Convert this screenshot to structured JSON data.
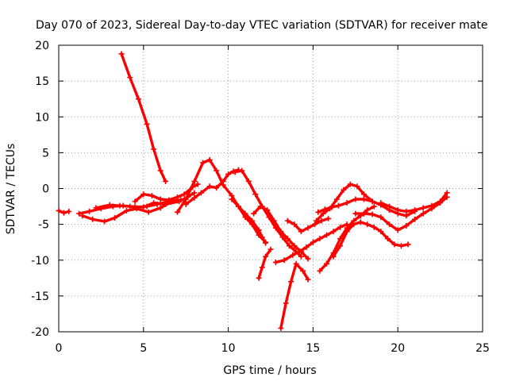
{
  "chart_data": {
    "type": "scatter",
    "title": "Day 070 of 2023, Sidereal Day-to-day VTEC variation (SDTVAR) for receiver mate",
    "xlabel": "GPS time / hours",
    "ylabel": "SDTVAR / TECUs",
    "xlim": [
      0,
      25
    ],
    "ylim": [
      -20,
      20
    ],
    "xticks": [
      0,
      5,
      10,
      15,
      20,
      25
    ],
    "yticks": [
      -20,
      -15,
      -10,
      -5,
      0,
      5,
      10,
      15,
      20
    ],
    "grid": true,
    "marker": "+",
    "color": "#ff0000",
    "series": [
      {
        "name": "s1",
        "x": [
          0.0,
          0.3,
          0.6
        ],
        "y": [
          -3.1,
          -3.4,
          -3.2
        ]
      },
      {
        "name": "s2",
        "x": [
          1.2,
          1.8,
          2.5,
          3.2,
          3.8,
          4.5,
          5.2,
          5.8,
          6.5,
          7.2
        ],
        "y": [
          -3.5,
          -3.2,
          -2.8,
          -2.5,
          -2.4,
          -2.6,
          -2.5,
          -2.2,
          -1.8,
          -1.6
        ]
      },
      {
        "name": "s3",
        "x": [
          1.4,
          2.0,
          2.7,
          3.3,
          4.0,
          4.6,
          5.3,
          6.0,
          6.6,
          7.0
        ],
        "y": [
          -3.8,
          -4.3,
          -4.6,
          -4.1,
          -3.1,
          -2.8,
          -3.3,
          -2.7,
          -1.9,
          -1.7
        ]
      },
      {
        "name": "s4",
        "x": [
          2.2,
          3.0,
          3.6,
          4.2,
          5.0,
          5.6,
          6.3,
          7.1,
          7.6,
          8.0
        ],
        "y": [
          -2.7,
          -2.3,
          -2.4,
          -2.5,
          -2.6,
          -2.0,
          -2.2,
          -1.8,
          -1.2,
          -0.6
        ]
      },
      {
        "name": "s5",
        "x": [
          3.7,
          4.2,
          4.7,
          5.2,
          5.6,
          6.0,
          6.3
        ],
        "y": [
          18.8,
          15.5,
          12.5,
          9.0,
          5.5,
          2.5,
          1.0
        ]
      },
      {
        "name": "s6",
        "x": [
          4.5,
          5.0,
          5.5,
          6.0,
          6.5,
          7.0,
          7.4,
          7.9,
          8.2
        ],
        "y": [
          -1.8,
          -0.8,
          -1.0,
          -1.5,
          -1.6,
          -1.2,
          -0.8,
          0.2,
          0.6
        ]
      },
      {
        "name": "s7",
        "x": [
          7.0,
          7.5,
          8.0,
          8.5,
          8.9,
          9.3,
          9.7,
          10.2,
          10.6,
          11.0,
          11.4,
          11.8,
          12.2
        ],
        "y": [
          -3.3,
          -1.5,
          1.0,
          3.6,
          4.0,
          2.5,
          0.5,
          -1.0,
          -2.5,
          -4.0,
          -5.0,
          -6.5,
          -7.5
        ]
      },
      {
        "name": "s8",
        "x": [
          7.5,
          8.0,
          8.4,
          8.9,
          9.3,
          9.7,
          10.0,
          10.3,
          10.6
        ],
        "y": [
          -2.2,
          -1.3,
          -0.6,
          0.3,
          0.1,
          1.0,
          2.0,
          2.4,
          2.6
        ]
      },
      {
        "name": "s9",
        "x": [
          10.4,
          10.8,
          11.2,
          11.6,
          12.0,
          12.4,
          12.8,
          13.2,
          13.6,
          14.0,
          14.3
        ],
        "y": [
          2.3,
          2.5,
          1.0,
          -0.8,
          -2.5,
          -4.0,
          -5.5,
          -6.8,
          -8.0,
          -8.8,
          -9.5
        ]
      },
      {
        "name": "s10",
        "x": [
          10.2,
          10.6,
          11.0,
          11.4,
          11.8,
          12.0,
          12.2
        ],
        "y": [
          -1.5,
          -2.5,
          -3.5,
          -4.5,
          -5.8,
          -6.8,
          -7.6
        ]
      },
      {
        "name": "s11",
        "x": [
          11.5,
          11.9,
          12.3,
          12.7,
          13.1,
          13.5,
          13.9,
          14.3,
          14.7
        ],
        "y": [
          -3.5,
          -2.5,
          -3.0,
          -4.5,
          -6.0,
          -7.0,
          -8.0,
          -8.8,
          -9.8
        ]
      },
      {
        "name": "s12",
        "x": [
          11.8,
          12.0,
          12.2,
          12.5
        ],
        "y": [
          -12.5,
          -11.0,
          -9.5,
          -8.5
        ]
      },
      {
        "name": "s13",
        "x": [
          12.8,
          13.3,
          13.8,
          14.2,
          14.6,
          15.0,
          15.4,
          15.8,
          16.2,
          16.6,
          17.0
        ],
        "y": [
          -10.3,
          -10.0,
          -9.3,
          -8.8,
          -8.2,
          -7.5,
          -7.0,
          -6.5,
          -6.0,
          -5.4,
          -5.0
        ]
      },
      {
        "name": "s14",
        "x": [
          13.1,
          13.4,
          13.7,
          14.0,
          14.4,
          14.7
        ],
        "y": [
          -19.5,
          -16.0,
          -13.0,
          -10.5,
          -11.5,
          -12.7
        ]
      },
      {
        "name": "s15",
        "x": [
          13.5,
          13.9,
          14.3,
          14.7,
          15.1,
          15.5,
          15.9
        ],
        "y": [
          -4.5,
          -5.0,
          -6.0,
          -5.5,
          -5.0,
          -4.5,
          -4.2
        ]
      },
      {
        "name": "s16",
        "x": [
          15.2,
          15.6,
          16.0,
          16.4,
          16.8,
          17.2,
          17.6,
          18.0,
          18.5
        ],
        "y": [
          -4.5,
          -3.5,
          -2.8,
          -1.5,
          -0.2,
          0.6,
          0.3,
          -0.8,
          -1.8
        ]
      },
      {
        "name": "s17",
        "x": [
          15.3,
          15.7,
          16.1,
          16.5,
          17.0,
          17.5,
          18.0,
          18.5,
          19.0,
          19.5,
          20.0,
          20.5,
          21.0
        ],
        "y": [
          -3.3,
          -2.9,
          -2.6,
          -2.4,
          -2.0,
          -1.5,
          -1.5,
          -1.8,
          -2.3,
          -3.0,
          -3.5,
          -3.8,
          -3.2
        ]
      },
      {
        "name": "s18",
        "x": [
          15.4,
          15.8,
          16.2,
          16.6,
          17.0,
          17.4,
          17.8,
          18.2,
          18.6
        ],
        "y": [
          -11.5,
          -10.5,
          -9.0,
          -7.0,
          -5.5,
          -4.5,
          -3.8,
          -3.0,
          -2.5
        ]
      },
      {
        "name": "s19",
        "x": [
          16.2,
          16.6,
          17.0,
          17.4,
          17.8,
          18.2,
          18.6,
          19.0,
          19.4,
          19.8,
          20.2,
          20.6
        ],
        "y": [
          -9.5,
          -8.0,
          -6.0,
          -5.0,
          -4.7,
          -5.0,
          -5.4,
          -6.0,
          -7.0,
          -7.8,
          -8.0,
          -7.8
        ]
      },
      {
        "name": "s20",
        "x": [
          17.5,
          18.0,
          18.5,
          19.0,
          19.5,
          20.0,
          20.5,
          21.0,
          21.5,
          22.0,
          22.5,
          22.9
        ],
        "y": [
          -3.5,
          -3.5,
          -3.6,
          -4.0,
          -5.0,
          -5.8,
          -5.2,
          -4.3,
          -3.5,
          -2.8,
          -2.0,
          -1.2
        ]
      },
      {
        "name": "s21",
        "x": [
          19.0,
          19.5,
          20.0,
          20.5,
          21.0,
          21.5,
          22.0,
          22.5,
          22.9
        ],
        "y": [
          -2.0,
          -2.5,
          -3.0,
          -3.2,
          -3.0,
          -2.7,
          -2.4,
          -1.8,
          -0.6
        ]
      }
    ]
  }
}
